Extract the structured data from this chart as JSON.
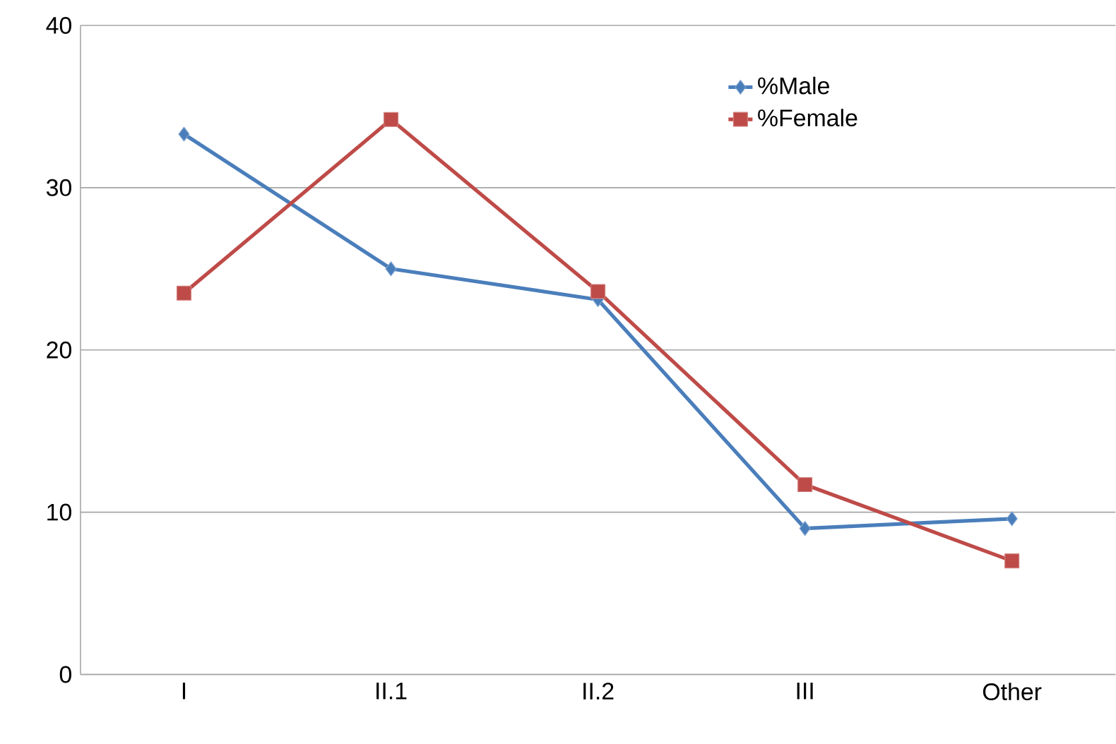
{
  "chart_data": {
    "type": "line",
    "categories": [
      "I",
      "II.1",
      "II.2",
      "III",
      "Other"
    ],
    "series": [
      {
        "name": "%Male",
        "color": "#4a7ebb",
        "marker": "diamond",
        "values": [
          33.3,
          25.0,
          23.1,
          9.0,
          9.6
        ]
      },
      {
        "name": "%Female",
        "color": "#be4b48",
        "marker": "square",
        "values": [
          23.5,
          34.2,
          23.6,
          11.7,
          7.0
        ]
      }
    ],
    "ylim": [
      0,
      40
    ],
    "yticks": [
      0,
      10,
      20,
      30,
      40
    ],
    "grid": "y",
    "legend": "top right"
  }
}
